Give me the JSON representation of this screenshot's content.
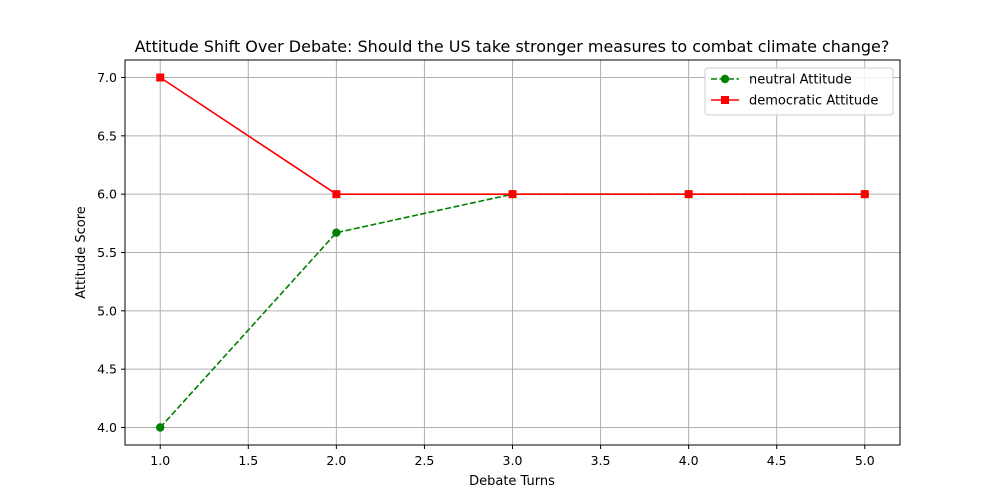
{
  "chart_data": {
    "type": "line",
    "title": "Attitude Shift Over Debate: Should the US take stronger measures to combat climate change?",
    "xlabel": "Debate Turns",
    "ylabel": "Attitude Score",
    "x": [
      1.0,
      2.0,
      3.0,
      4.0,
      5.0
    ],
    "xlim": [
      0.8,
      5.2
    ],
    "ylim": [
      3.85,
      7.15
    ],
    "xticks": [
      "1.0",
      "1.5",
      "2.0",
      "2.5",
      "3.0",
      "3.5",
      "4.0",
      "4.5",
      "5.0"
    ],
    "yticks": [
      "4.0",
      "4.5",
      "5.0",
      "5.5",
      "6.0",
      "6.5",
      "7.0"
    ],
    "grid": true,
    "legend_position": "top-right",
    "series": [
      {
        "name": "neutral Attitude",
        "values": [
          4.0,
          5.67,
          6.0,
          6.0,
          6.0
        ],
        "color": "#008000",
        "line_style": "dashed",
        "marker": "circle"
      },
      {
        "name": "democratic Attitude",
        "values": [
          7.0,
          6.0,
          6.0,
          6.0,
          6.0
        ],
        "color": "#ff0000",
        "line_style": "solid",
        "marker": "square"
      }
    ]
  }
}
